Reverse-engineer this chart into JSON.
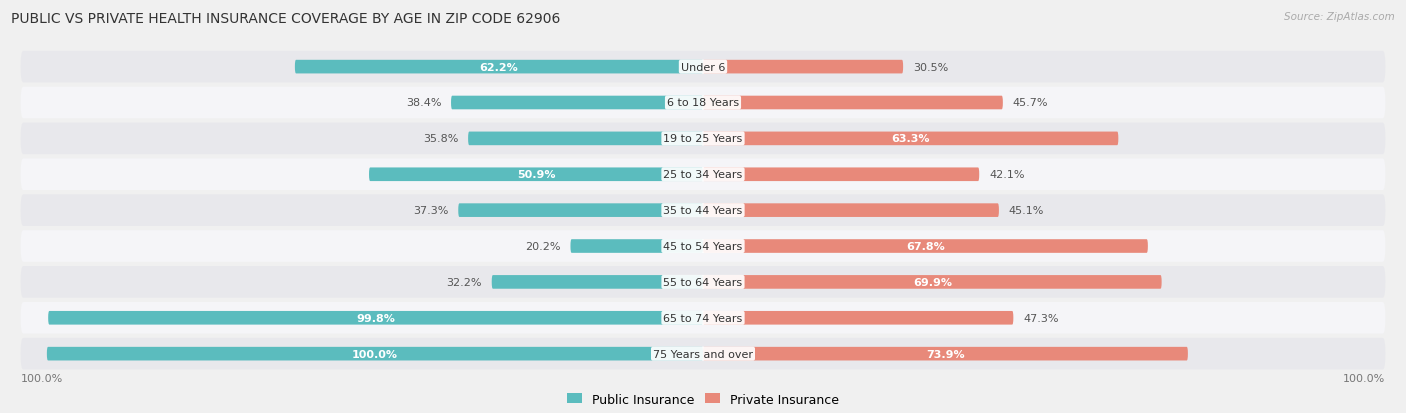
{
  "title": "PUBLIC VS PRIVATE HEALTH INSURANCE COVERAGE BY AGE IN ZIP CODE 62906",
  "source": "Source: ZipAtlas.com",
  "categories": [
    "Under 6",
    "6 to 18 Years",
    "19 to 25 Years",
    "25 to 34 Years",
    "35 to 44 Years",
    "45 to 54 Years",
    "55 to 64 Years",
    "65 to 74 Years",
    "75 Years and over"
  ],
  "public_values": [
    62.2,
    38.4,
    35.8,
    50.9,
    37.3,
    20.2,
    32.2,
    99.8,
    100.0
  ],
  "private_values": [
    30.5,
    45.7,
    63.3,
    42.1,
    45.1,
    67.8,
    69.9,
    47.3,
    73.9
  ],
  "public_color": "#5bbcbe",
  "private_color": "#e8897a",
  "bg_color": "#f0f0f0",
  "row_colors": [
    "#e8e8ec",
    "#f5f5f8"
  ],
  "title_fontsize": 10,
  "label_fontsize": 8,
  "value_fontsize": 8,
  "legend_fontsize": 9,
  "axis_label_fontsize": 8,
  "max_value": 100.0,
  "inside_label_threshold_pub": 45,
  "inside_label_threshold_priv": 55
}
